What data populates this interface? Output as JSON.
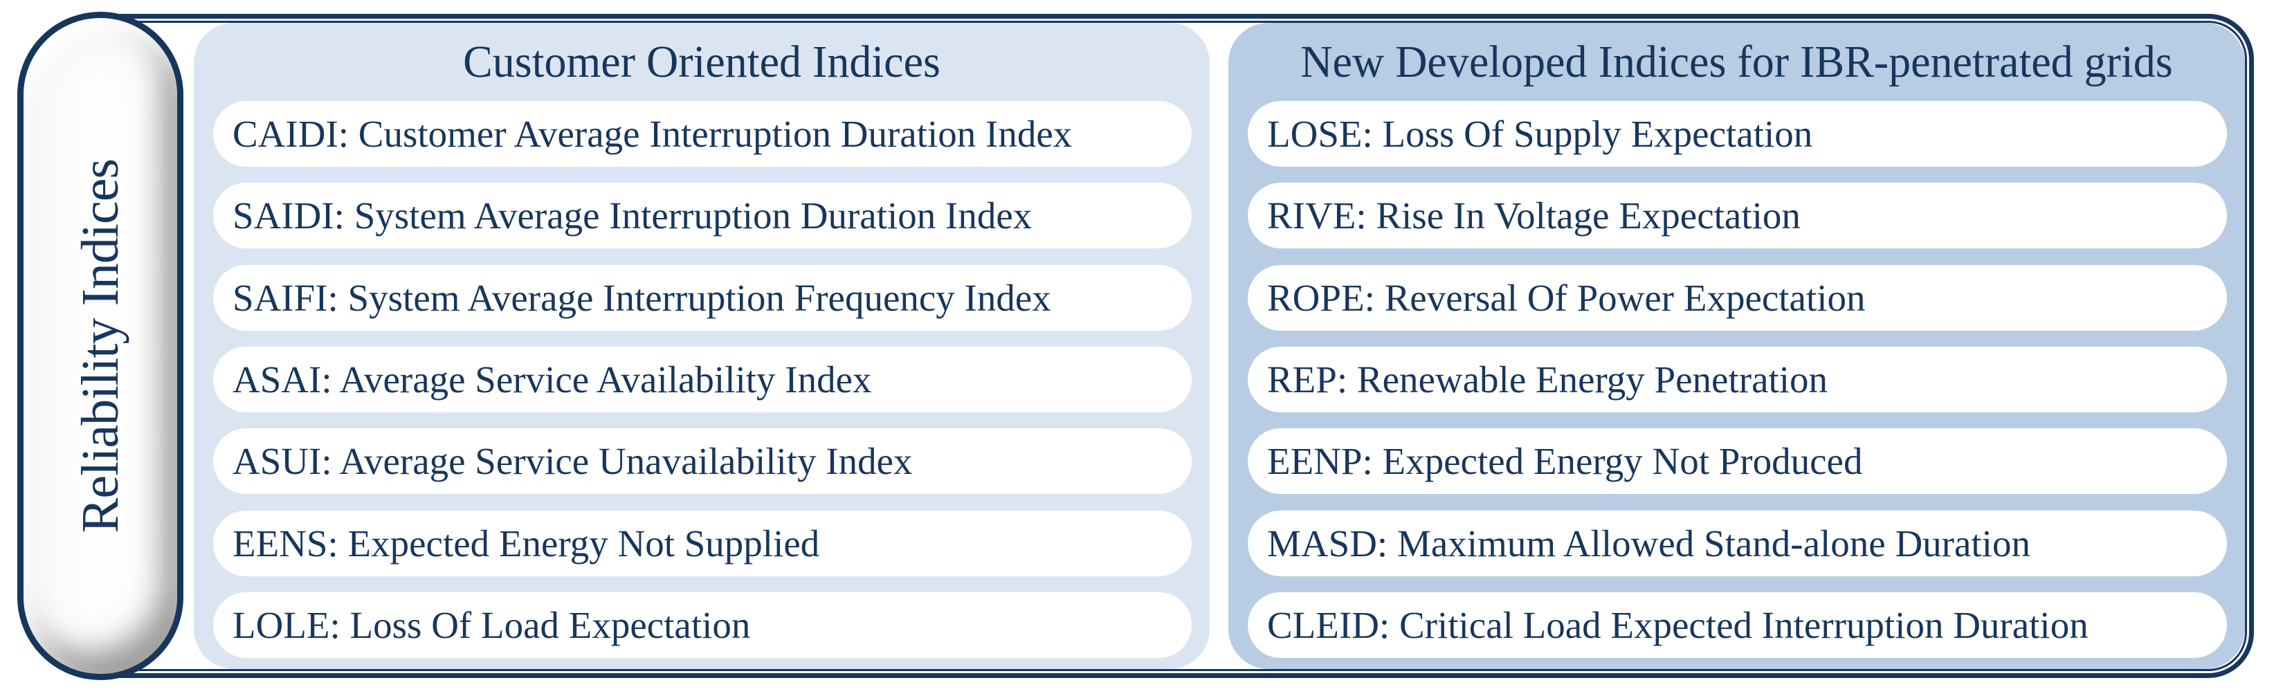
{
  "title": "Reliability Indices",
  "left_panel": {
    "title": "Customer Oriented Indices",
    "items": [
      "CAIDI: Customer Average Interruption Duration Index",
      "SAIDI: System Average Interruption Duration Index",
      "SAIFI: System Average Interruption Frequency Index",
      "ASAI: Average Service Availability Index",
      "ASUI: Average Service Unavailability Index",
      "EENS: Expected Energy Not Supplied",
      "LOLE: Loss Of Load Expectation"
    ]
  },
  "right_panel": {
    "title": "New Developed Indices for IBR-penetrated grids",
    "items": [
      "LOSE: Loss Of Supply Expectation",
      "RIVE: Rise In Voltage Expectation",
      "ROPE: Reversal Of Power Expectation",
      "REP: Renewable Energy Penetration",
      "EENP: Expected Energy Not Produced",
      "MASD: Maximum Allowed Stand-alone Duration",
      "CLEID: Critical Load Expected Interruption Duration"
    ]
  },
  "colors": {
    "navy": "#17365d",
    "left_panel_bg": "#dbe5f1",
    "right_panel_bg": "#b8cce4",
    "pill_bg": "#ffffff"
  }
}
